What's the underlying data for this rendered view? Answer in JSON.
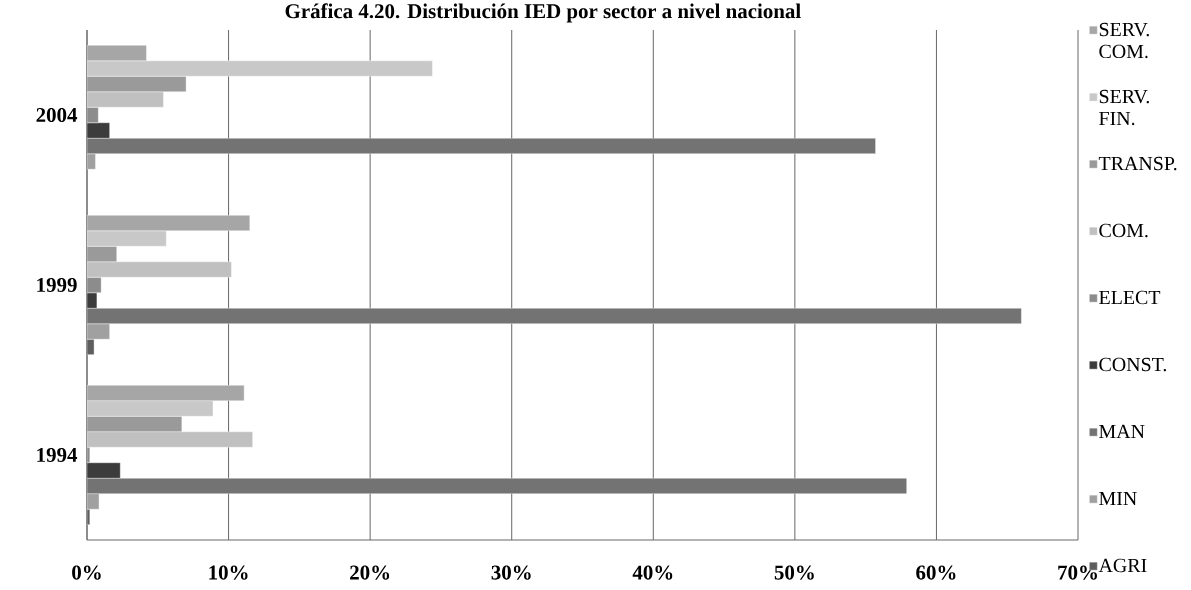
{
  "chart_data": {
    "type": "bar",
    "orientation": "horizontal",
    "title": "Gráfica 4.20. Distribución IED por sector a nivel nacional",
    "categories": [
      "2004",
      "1999",
      "1994"
    ],
    "series": [
      {
        "name": "AGRI",
        "color": "#5e5e5e",
        "values": [
          null,
          0.5,
          0.2
        ]
      },
      {
        "name": "MIN",
        "color": "#a0a0a0",
        "values": [
          0.6,
          1.6,
          0.85
        ]
      },
      {
        "name": "MAN",
        "color": "#737373",
        "values": [
          55.7,
          66.0,
          57.9
        ]
      },
      {
        "name": "CONST.",
        "color": "#3c3c3c",
        "values": [
          1.6,
          0.7,
          2.35
        ]
      },
      {
        "name": "ELECT",
        "color": "#8c8c8c",
        "values": [
          0.8,
          1.0,
          0.2
        ]
      },
      {
        "name": "COM.",
        "color": "#c0c0c0",
        "values": [
          5.4,
          10.2,
          11.7
        ]
      },
      {
        "name": "TRANSP.",
        "color": "#9a9a9a",
        "values": [
          7.0,
          2.1,
          6.7
        ]
      },
      {
        "name": "SERV. FIN.",
        "color": "#c8c8c8",
        "values": [
          24.4,
          5.6,
          8.9
        ]
      },
      {
        "name": "SERV. COM.",
        "color": "#a6a6a6",
        "values": [
          4.2,
          11.5,
          11.1
        ]
      }
    ],
    "xlim": [
      0,
      70
    ],
    "xticks": [
      {
        "value": 0,
        "label": "0%"
      },
      {
        "value": 10,
        "label": "10%"
      },
      {
        "value": 20,
        "label": "20%"
      },
      {
        "value": 30,
        "label": "30%"
      },
      {
        "value": 40,
        "label": "40%"
      },
      {
        "value": 50,
        "label": "50%"
      },
      {
        "value": 60,
        "label": "60%"
      },
      {
        "value": 70,
        "label": "70%"
      }
    ],
    "grid": "x",
    "legend": "right"
  }
}
